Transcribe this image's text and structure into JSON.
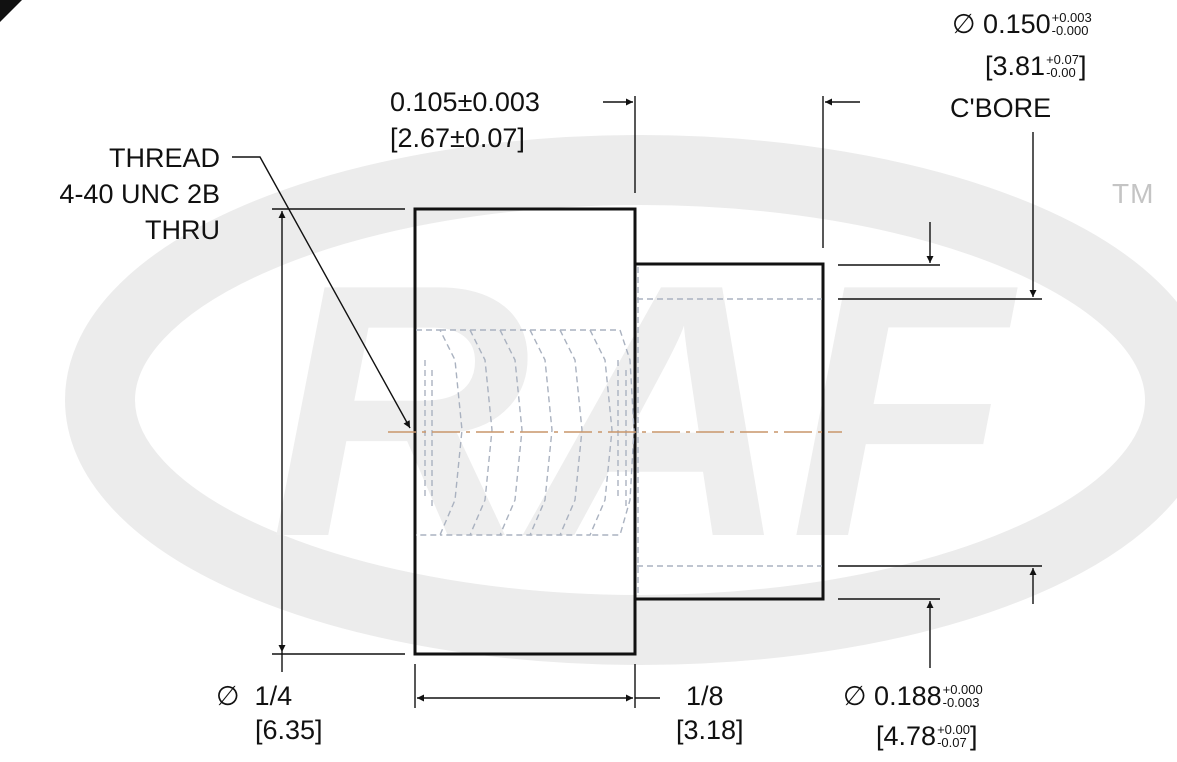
{
  "watermark": {
    "letters": "RAF",
    "trademark": "TM",
    "color": "#e9e9e9"
  },
  "colors": {
    "outline": "#111111",
    "hidden_line": "#aab2c0",
    "center_line": "#c9956a"
  },
  "thread_callout": [
    "THREAD",
    "4-40 UNC 2B",
    "THRU"
  ],
  "dim_shoulder_length": {
    "imperial": "0.105±0.003",
    "metric": "[2.67±0.07]"
  },
  "dim_cbore": {
    "symbol": "∅",
    "value": "0.150",
    "tol_upper": "+0.003",
    "tol_lower": "-0.000",
    "metric_value": "3.81",
    "metric_tol_upper": "+0.07",
    "metric_tol_lower": "-0.00",
    "note": "C'BORE"
  },
  "dim_head_diameter": {
    "symbol": "∅",
    "imperial": "1/4",
    "metric": "[6.35]"
  },
  "dim_head_length": {
    "imperial": "1/8",
    "metric": "[3.18]"
  },
  "dim_pilot_diameter": {
    "symbol": "∅",
    "value": "0.188",
    "tol_upper": "+0.000",
    "tol_lower": "-0.003",
    "metric_value": "4.78",
    "metric_tol_upper": "+0.00",
    "metric_tol_lower": "-0.07"
  }
}
